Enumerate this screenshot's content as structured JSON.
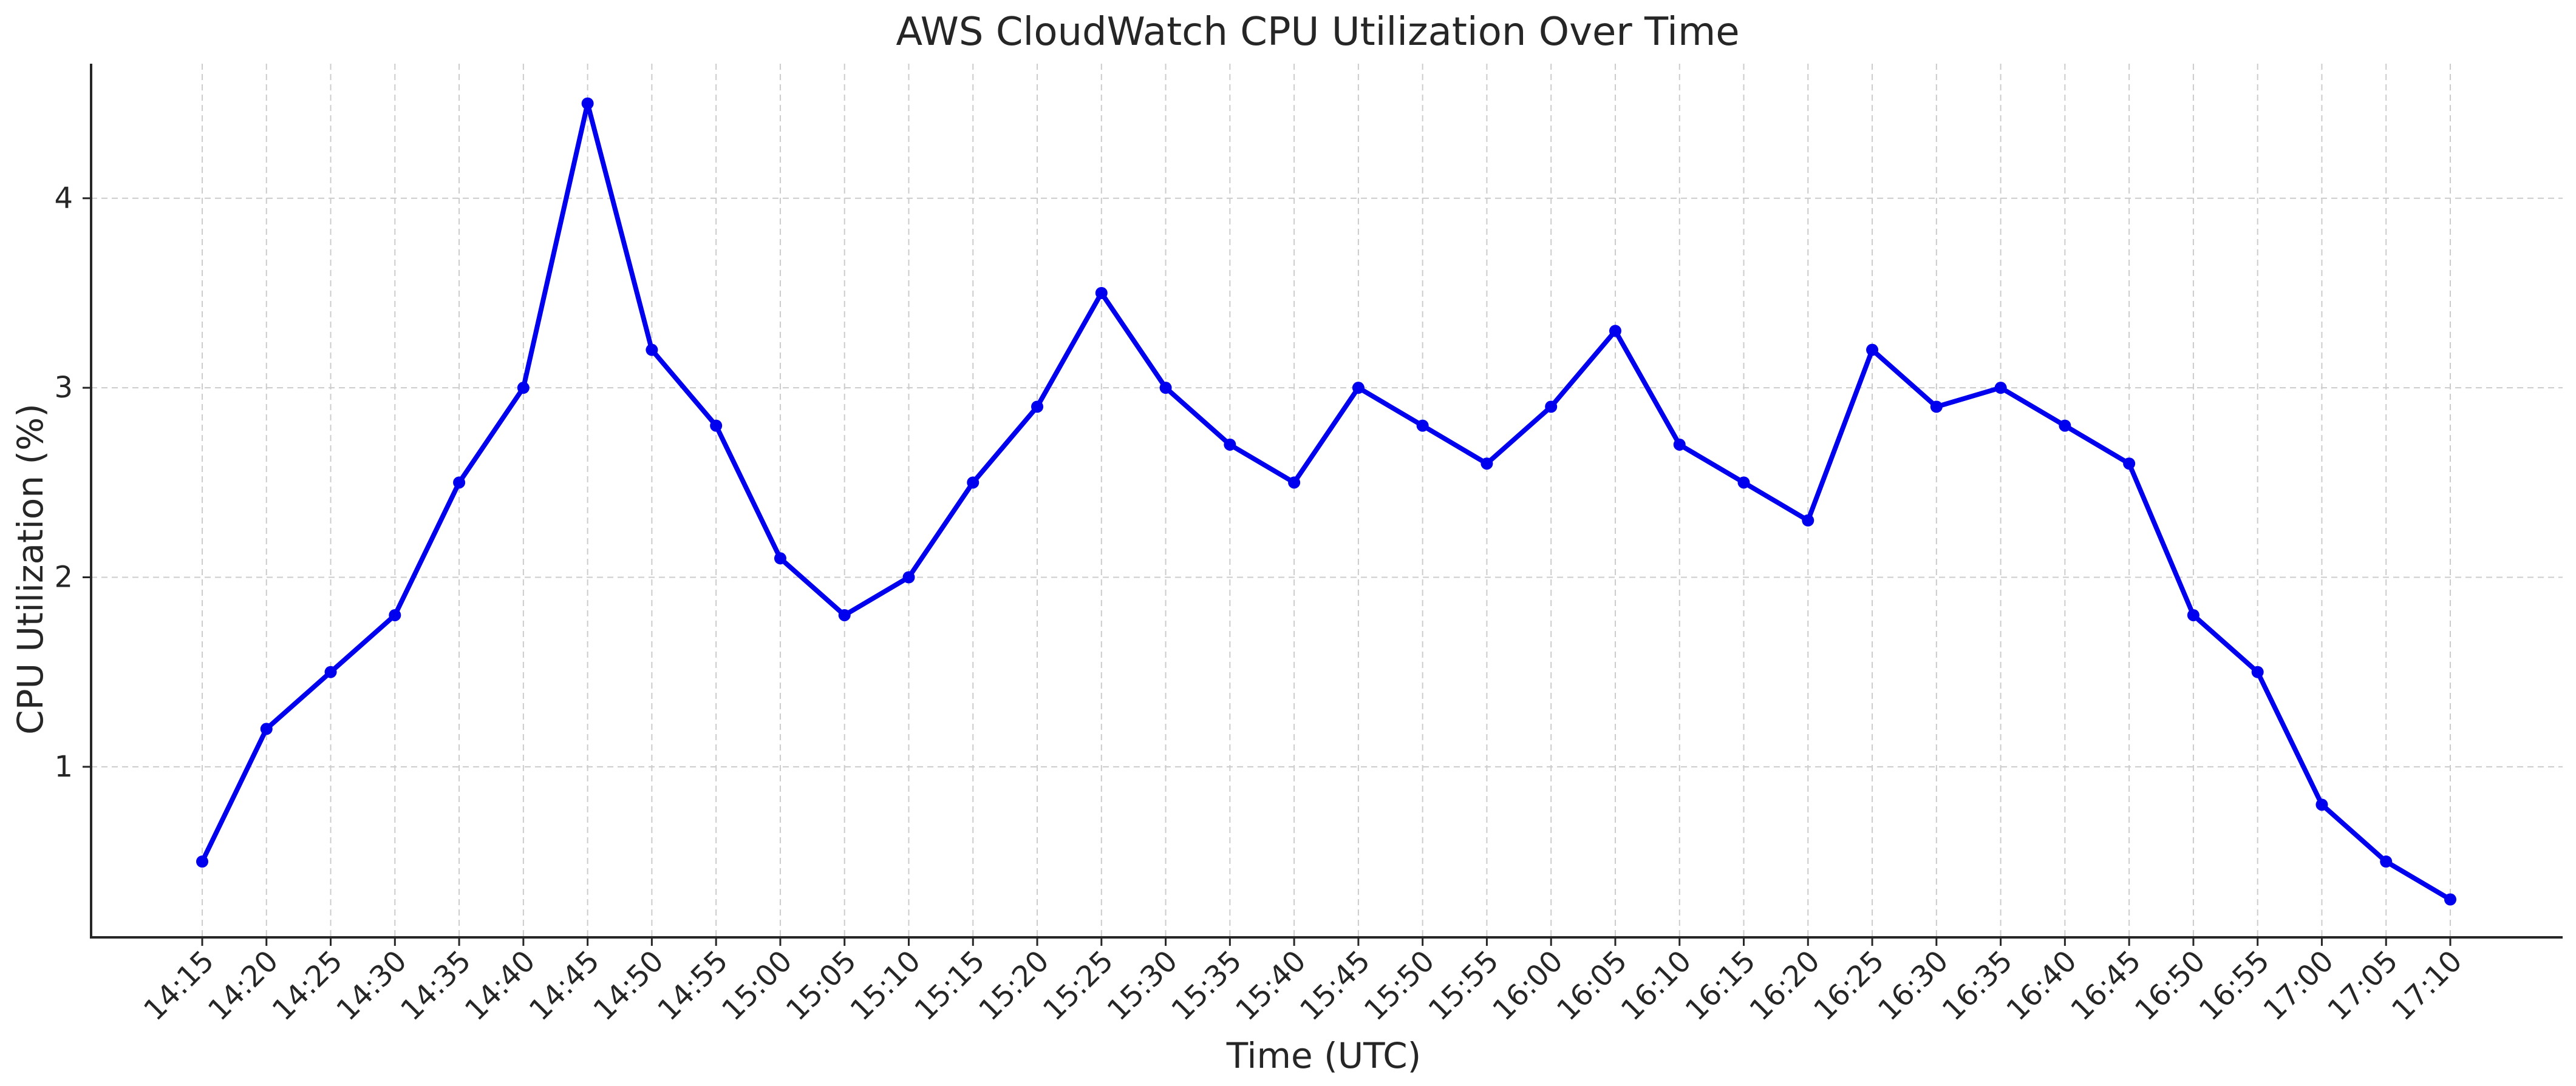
{
  "chart_data": {
    "type": "line",
    "title": "AWS CloudWatch CPU Utilization Over Time",
    "xlabel": "Time (UTC)",
    "ylabel": "CPU Utilization (%)",
    "categories": [
      "14:15",
      "14:20",
      "14:25",
      "14:30",
      "14:35",
      "14:40",
      "14:45",
      "14:50",
      "14:55",
      "15:00",
      "15:05",
      "15:10",
      "15:15",
      "15:20",
      "15:25",
      "15:30",
      "15:35",
      "15:40",
      "15:45",
      "15:50",
      "15:55",
      "16:00",
      "16:05",
      "16:10",
      "16:15",
      "16:20",
      "16:25",
      "16:30",
      "16:35",
      "16:40",
      "16:45",
      "16:50",
      "16:55",
      "17:00",
      "17:05",
      "17:10"
    ],
    "series": [
      {
        "values": [
          0.5,
          1.2,
          1.5,
          1.8,
          2.5,
          3.0,
          4.5,
          3.2,
          2.8,
          2.1,
          1.8,
          2.0,
          2.5,
          2.9,
          3.5,
          3.0,
          2.7,
          2.5,
          3.0,
          2.8,
          2.6,
          2.9,
          3.3,
          2.7,
          2.5,
          2.3,
          3.2,
          2.9,
          3.0,
          2.8,
          2.6,
          1.8,
          1.5,
          0.8,
          0.5,
          0.3
        ],
        "color": "#0000ee"
      }
    ],
    "ylim": [
      0.1,
      4.71
    ],
    "yticks": [
      1,
      2,
      3,
      4
    ],
    "grid": true,
    "legend": "none"
  }
}
